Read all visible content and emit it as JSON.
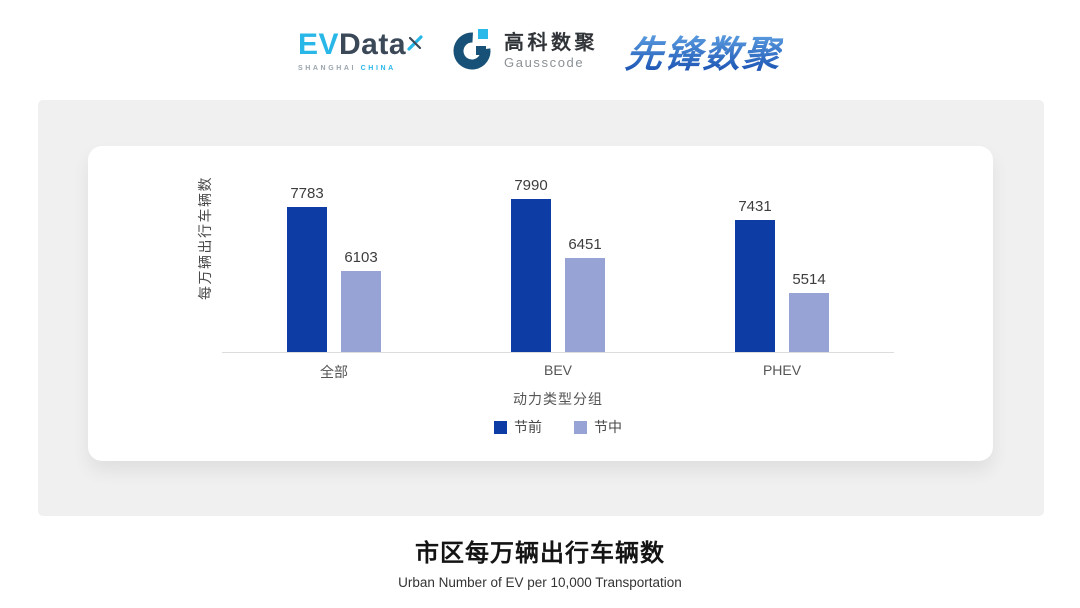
{
  "header": {
    "evdata": {
      "ev": "EV",
      "data": "Data",
      "sub_left": "SHANGHAI ",
      "sub_right": "CHINA"
    },
    "gausscode": {
      "cn": "高科数聚",
      "en": "Gausscode"
    },
    "pioneer": {
      "text": "先锋数聚"
    }
  },
  "chart_data": {
    "type": "bar",
    "categories": [
      "全部",
      "BEV",
      "PHEV"
    ],
    "series": [
      {
        "key": "pre-holiday",
        "name": "节前",
        "color": "#0d3ca5",
        "values": [
          7783,
          7990,
          7431
        ]
      },
      {
        "key": "mid-holiday",
        "name": "节中",
        "color": "#97a3d5",
        "values": [
          6103,
          6451,
          5514
        ]
      }
    ],
    "xlabel": "动力类型分组",
    "ylabel": "每万辆出行车辆数",
    "ylim": [
      3980,
      9380
    ],
    "grid": false,
    "legend_position": "bottom"
  },
  "footer": {
    "title": "市区每万辆出行车辆数",
    "subtitle": "Urban Number of EV per 10,000 Transportation"
  }
}
